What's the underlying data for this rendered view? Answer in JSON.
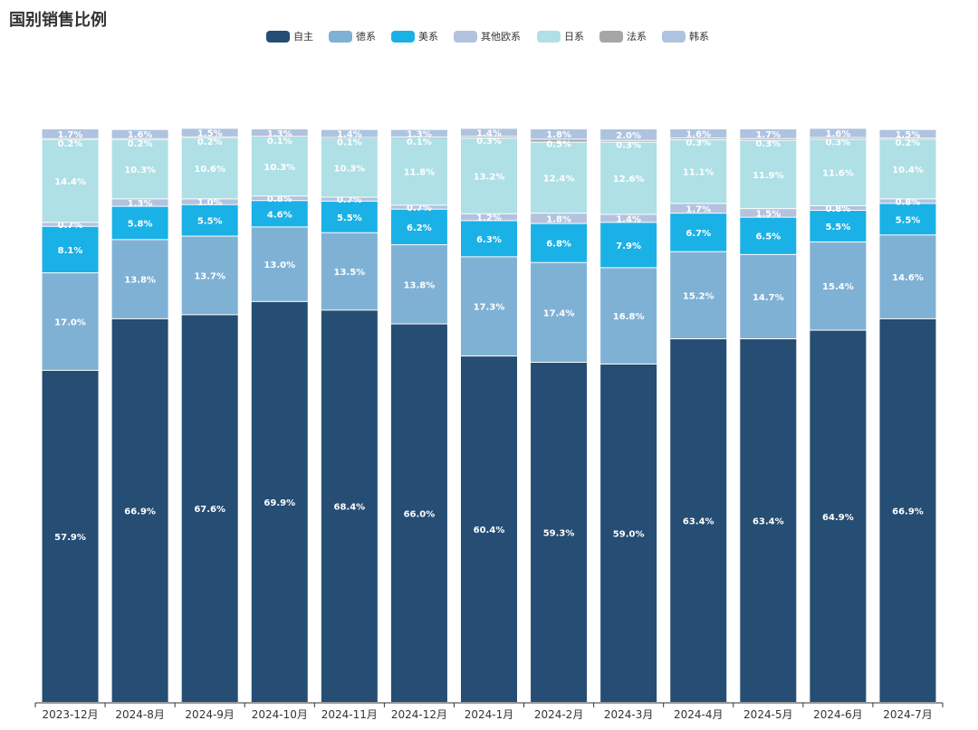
{
  "chart_data": {
    "type": "stacked-bar",
    "title": "国别销售比例",
    "xlabel": "",
    "ylabel": "",
    "ylim": [
      0,
      100
    ],
    "categories": [
      "2023-12月",
      "2024-8月",
      "2024-9月",
      "2024-10月",
      "2024-11月",
      "2024-12月",
      "2024-1月",
      "2024-2月",
      "2024-3月",
      "2024-4月",
      "2024-5月",
      "2024-6月",
      "2024-7月"
    ],
    "series": [
      {
        "name": "自主",
        "color": "#264d73",
        "values": [
          57.9,
          66.9,
          67.6,
          69.9,
          68.4,
          66.0,
          60.4,
          59.3,
          59.0,
          63.4,
          63.4,
          64.9,
          66.9
        ],
        "labels": [
          "57.9%",
          "66.9%",
          "67.6%",
          "69.9%",
          "68.4%",
          "66.0%",
          "60.4%",
          "59.3%",
          "59.0%",
          "63.4%",
          "63.4%",
          "64.9%",
          "66.9%"
        ]
      },
      {
        "name": "德系",
        "color": "#7fb1d5",
        "values": [
          17.0,
          13.8,
          13.7,
          13.0,
          13.5,
          13.8,
          17.3,
          17.4,
          16.8,
          15.2,
          14.7,
          15.4,
          14.6
        ],
        "labels": [
          "17.0%",
          "13.8%",
          "13.7%",
          "13.0%",
          "13.5%",
          "13.8%",
          "17.3%",
          "17.4%",
          "16.8%",
          "15.2%",
          "14.7%",
          "15.4%",
          "14.6%"
        ]
      },
      {
        "name": "美系",
        "color": "#1ab1e6",
        "values": [
          8.1,
          5.8,
          5.5,
          4.6,
          5.5,
          6.2,
          6.3,
          6.8,
          7.9,
          6.7,
          6.5,
          5.5,
          5.5
        ],
        "labels": [
          "8.1%",
          "5.8%",
          "5.5%",
          "4.6%",
          "5.5%",
          "6.2%",
          "6.3%",
          "6.8%",
          "7.9%",
          "6.7%",
          "6.5%",
          "5.5%",
          "5.5%"
        ]
      },
      {
        "name": "其他欧系",
        "color": "#b2c2df",
        "values": [
          0.7,
          1.3,
          1.0,
          0.8,
          0.7,
          0.7,
          1.2,
          1.8,
          1.4,
          1.7,
          1.5,
          0.8,
          0.8
        ],
        "labels": [
          "0.7%",
          "1.3%",
          "1.0%",
          "0.8%",
          "0.7%",
          "0.7%",
          "1.2%",
          "1.8%",
          "1.4%",
          "1.7%",
          "1.5%",
          "0.8%",
          "0.8%"
        ]
      },
      {
        "name": "日系",
        "color": "#aee0e6",
        "values": [
          14.4,
          10.3,
          10.6,
          10.3,
          10.3,
          11.8,
          13.2,
          12.4,
          12.6,
          11.1,
          11.9,
          11.6,
          10.4
        ],
        "labels": [
          "14.4%",
          "10.3%",
          "10.6%",
          "10.3%",
          "10.3%",
          "11.8%",
          "13.2%",
          "12.4%",
          "12.6%",
          "11.1%",
          "11.9%",
          "11.6%",
          "10.4%"
        ]
      },
      {
        "name": "法系",
        "color": "#a6a6a6",
        "values": [
          0.2,
          0.2,
          0.2,
          0.1,
          0.1,
          0.1,
          0.3,
          0.5,
          0.3,
          0.3,
          0.3,
          0.3,
          0.2
        ],
        "labels": [
          "0.2%",
          "0.2%",
          "0.2%",
          "0.1%",
          "0.1%",
          "0.1%",
          "0.3%",
          "0.5%",
          "0.3%",
          "0.3%",
          "0.3%",
          "0.3%",
          "0.2%"
        ]
      },
      {
        "name": "韩系",
        "color": "#aec3e0",
        "values": [
          1.7,
          1.6,
          1.5,
          1.3,
          1.4,
          1.3,
          1.4,
          1.8,
          2.0,
          1.6,
          1.7,
          1.6,
          1.5
        ],
        "labels": [
          "1.7%",
          "1.6%",
          "1.5%",
          "1.3%",
          "1.4%",
          "1.3%",
          "1.4%",
          "1.8%",
          "2.0%",
          "1.6%",
          "1.7%",
          "1.6%",
          "1.5%"
        ]
      }
    ]
  }
}
